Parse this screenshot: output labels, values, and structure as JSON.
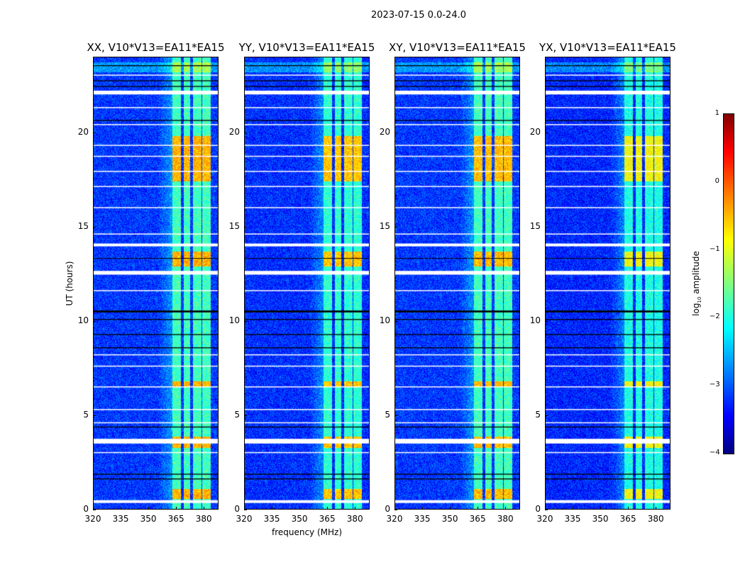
{
  "suptitle": "2023-07-15 0.0-24.0",
  "chart_data": {
    "type": "heatmap",
    "title": "2023-07-15 0.0-24.0",
    "xlabel": "frequency (MHz)",
    "ylabel": "UT (hours)",
    "xlim": [
      320,
      388
    ],
    "ylim": [
      0,
      24
    ],
    "xticks": [
      "320",
      "335",
      "350",
      "365",
      "380"
    ],
    "xtick_values": [
      320,
      335,
      350,
      365,
      380
    ],
    "yticks": [
      "0",
      "5",
      "10",
      "15",
      "20"
    ],
    "ytick_values": [
      0,
      5,
      10,
      15,
      20
    ],
    "colorbar": {
      "label": "log10 amplitude",
      "label_main": "log",
      "label_sub": "10",
      "label_rest": " amplitude",
      "range": [
        -4,
        1
      ],
      "ticks": [
        "1",
        "0",
        "−1",
        "−2",
        "−3",
        "−4"
      ],
      "tick_values": [
        1,
        0,
        -1,
        -2,
        -3,
        -4
      ],
      "colormap": "jet"
    },
    "panels": [
      {
        "title": "XX, V10*V13=EA11*EA15",
        "background": -3.1,
        "band_level": -1.8,
        "bright_level": -0.5
      },
      {
        "title": "YY, V10*V13=EA11*EA15",
        "background": -3.15,
        "band_level": -1.9,
        "bright_level": -0.6
      },
      {
        "title": "XY, V10*V13=EA11*EA15",
        "background": -3.1,
        "band_level": -1.8,
        "bright_level": -0.55
      },
      {
        "title": "YX, V10*V13=EA11*EA15",
        "background": -3.2,
        "band_level": -2.0,
        "bright_level": -0.9
      }
    ],
    "rfi_bands_mhz": [
      [
        363,
        367.5
      ],
      [
        369,
        372.5
      ],
      [
        374,
        378.5
      ],
      [
        379,
        383.5
      ]
    ],
    "bright_hours": [
      [
        17.4,
        19.8
      ],
      [
        12.9,
        13.7
      ],
      [
        6.5,
        6.8
      ],
      [
        0.6,
        1.1
      ],
      [
        3.3,
        3.9
      ]
    ],
    "flagged_white_hours": [
      [
        0.35,
        0.5
      ],
      [
        3.0,
        3.05
      ],
      [
        3.5,
        3.75
      ],
      [
        12.45,
        12.65
      ],
      [
        13.95,
        14.1
      ],
      [
        22.0,
        22.2
      ],
      [
        23.0,
        23.05
      ],
      [
        21.3,
        21.33
      ],
      [
        20.4,
        20.43
      ],
      [
        19.3,
        19.33
      ],
      [
        18.7,
        18.75
      ],
      [
        17.9,
        17.95
      ],
      [
        17.1,
        17.15
      ],
      [
        16.0,
        16.03
      ],
      [
        14.6,
        14.63
      ],
      [
        11.6,
        11.63
      ],
      [
        8.2,
        8.23
      ],
      [
        7.6,
        7.63
      ],
      [
        6.5,
        6.53
      ],
      [
        5.3,
        5.33
      ],
      [
        4.6,
        4.63
      ]
    ],
    "flagged_black_hours": [
      [
        1.6,
        1.65
      ],
      [
        1.85,
        1.9
      ],
      [
        4.35,
        4.4
      ],
      [
        8.55,
        8.6
      ],
      [
        9.25,
        9.3
      ],
      [
        10.05,
        10.1
      ],
      [
        10.45,
        10.55
      ],
      [
        13.3,
        13.33
      ],
      [
        20.6,
        20.65
      ],
      [
        22.4,
        22.45
      ],
      [
        22.7,
        22.75
      ],
      [
        23.5,
        23.55
      ]
    ]
  }
}
